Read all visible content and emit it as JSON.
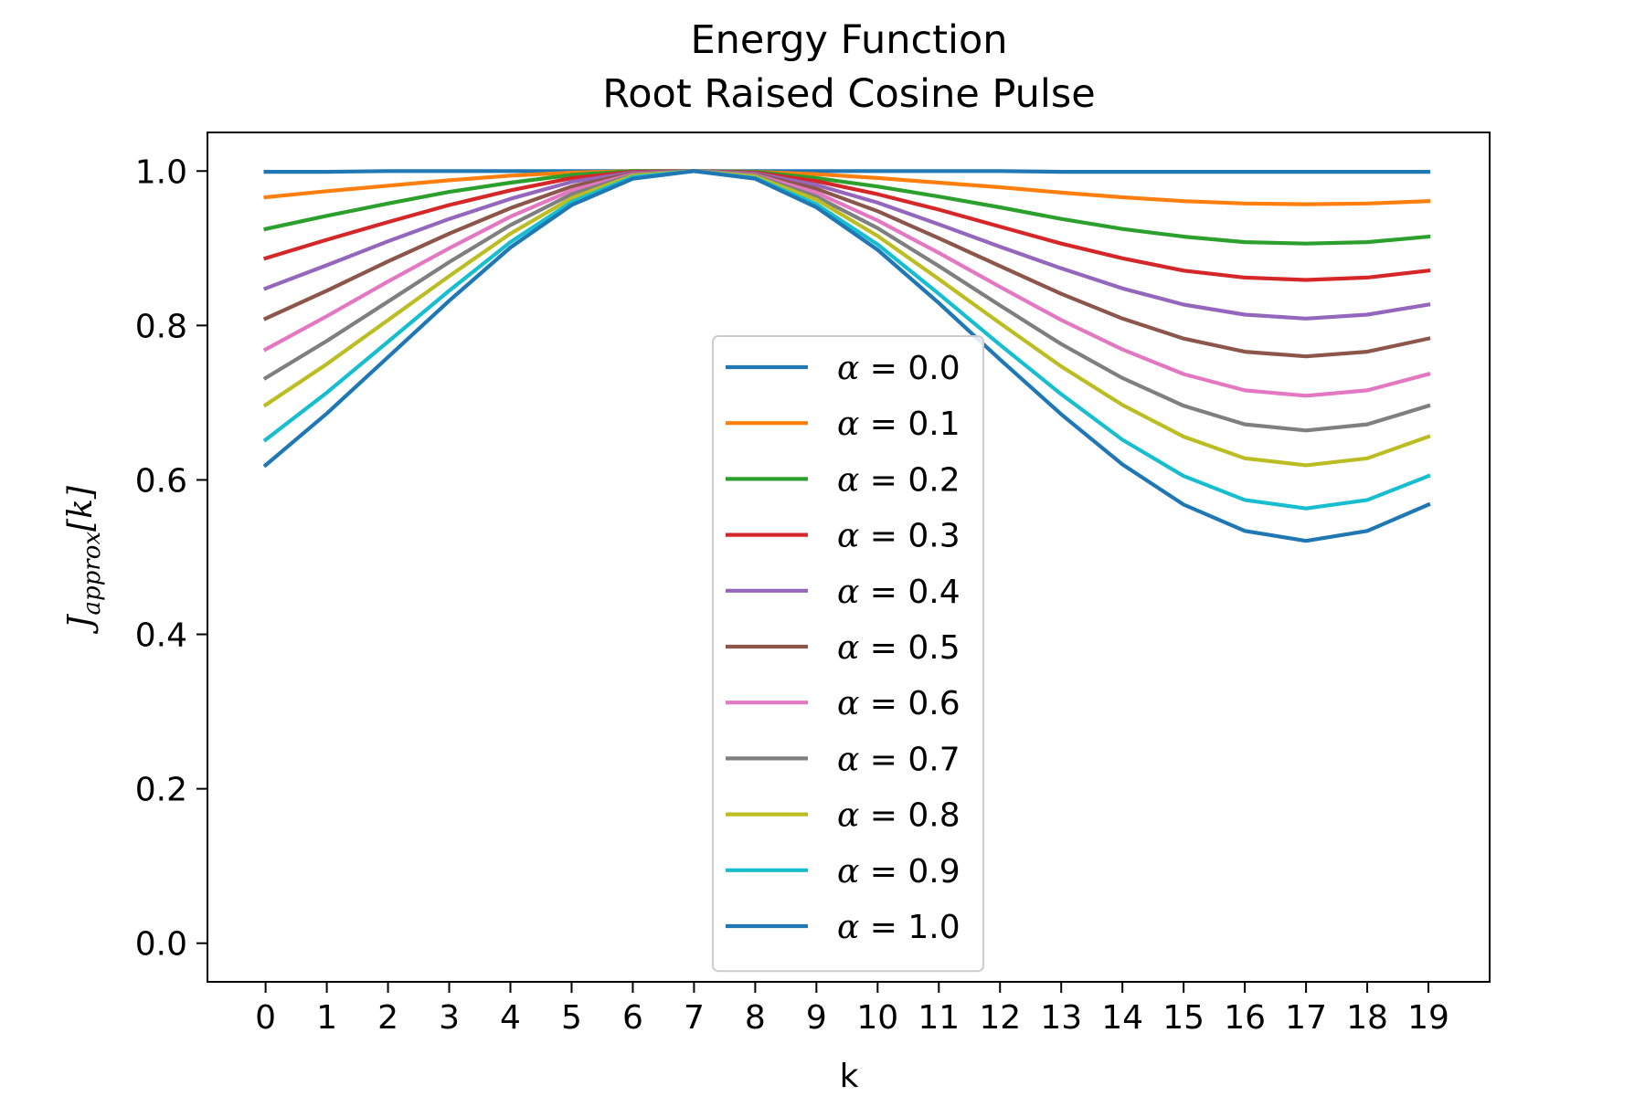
{
  "chart_data": {
    "type": "line",
    "title": [
      "Energy Function",
      "Root Raised Cosine Pulse"
    ],
    "xlabel": "k",
    "ylabel": {
      "base": "J",
      "subscript": "approx",
      "suffix": "[k]"
    },
    "x": [
      0,
      1,
      2,
      3,
      4,
      5,
      6,
      7,
      8,
      9,
      10,
      11,
      12,
      13,
      14,
      15,
      16,
      17,
      18,
      19
    ],
    "xlim": [
      -0.95,
      20.0
    ],
    "ylim": [
      -0.05,
      1.05
    ],
    "yticks": [
      0.0,
      0.2,
      0.4,
      0.6,
      0.8,
      1.0
    ],
    "ytick_labels": [
      "0.0",
      "0.2",
      "0.4",
      "0.6",
      "0.8",
      "1.0"
    ],
    "xtick_labels": [
      "0",
      "1",
      "2",
      "3",
      "4",
      "5",
      "6",
      "7",
      "8",
      "9",
      "10",
      "11",
      "12",
      "13",
      "14",
      "15",
      "16",
      "17",
      "18",
      "19"
    ],
    "grid": false,
    "legend_placement": "lower-center",
    "legend_symbol": "α",
    "series": [
      {
        "name": "0.0",
        "color": "#1f77b4",
        "values": [
          0.999,
          0.999,
          1.0,
          1.0,
          1.0,
          1.0,
          1.0,
          1.0,
          1.0,
          1.0,
          1.0,
          1.0,
          1.0,
          0.999,
          0.999,
          0.999,
          0.999,
          0.999,
          0.999,
          0.999
        ]
      },
      {
        "name": "0.1",
        "color": "#ff7f0e",
        "values": [
          0.966,
          0.974,
          0.981,
          0.988,
          0.994,
          0.998,
          1.0,
          1.0,
          0.999,
          0.996,
          0.991,
          0.985,
          0.979,
          0.972,
          0.966,
          0.961,
          0.958,
          0.957,
          0.958,
          0.961
        ]
      },
      {
        "name": "0.2",
        "color": "#2ca02c",
        "values": [
          0.925,
          0.942,
          0.958,
          0.973,
          0.985,
          0.995,
          1.0,
          1.0,
          0.999,
          0.991,
          0.98,
          0.967,
          0.953,
          0.938,
          0.925,
          0.915,
          0.908,
          0.906,
          0.908,
          0.915
        ]
      },
      {
        "name": "0.3",
        "color": "#d62728",
        "values": [
          0.887,
          0.911,
          0.934,
          0.956,
          0.975,
          0.991,
          0.999,
          1.0,
          0.998,
          0.987,
          0.97,
          0.95,
          0.928,
          0.906,
          0.887,
          0.871,
          0.862,
          0.859,
          0.862,
          0.871
        ]
      },
      {
        "name": "0.4",
        "color": "#9467bd",
        "values": [
          0.848,
          0.878,
          0.909,
          0.938,
          0.964,
          0.986,
          0.998,
          1.0,
          0.997,
          0.982,
          0.959,
          0.931,
          0.902,
          0.874,
          0.848,
          0.827,
          0.814,
          0.809,
          0.814,
          0.827
        ]
      },
      {
        "name": "0.5",
        "color": "#8c564b",
        "values": [
          0.809,
          0.845,
          0.883,
          0.919,
          0.952,
          0.98,
          0.997,
          1.0,
          0.996,
          0.977,
          0.948,
          0.913,
          0.877,
          0.841,
          0.809,
          0.783,
          0.766,
          0.76,
          0.766,
          0.783
        ]
      },
      {
        "name": "0.6",
        "color": "#e377c2",
        "values": [
          0.769,
          0.812,
          0.857,
          0.9,
          0.941,
          0.975,
          0.996,
          1.0,
          0.995,
          0.972,
          0.936,
          0.894,
          0.85,
          0.807,
          0.769,
          0.737,
          0.716,
          0.709,
          0.716,
          0.737
        ]
      },
      {
        "name": "0.7",
        "color": "#7f7f7f",
        "values": [
          0.732,
          0.78,
          0.831,
          0.882,
          0.93,
          0.97,
          0.995,
          1.0,
          0.994,
          0.967,
          0.926,
          0.877,
          0.826,
          0.776,
          0.732,
          0.696,
          0.672,
          0.664,
          0.672,
          0.696
        ]
      },
      {
        "name": "0.8",
        "color": "#bcbd22",
        "values": [
          0.697,
          0.75,
          0.807,
          0.864,
          0.919,
          0.965,
          0.994,
          1.0,
          0.993,
          0.963,
          0.916,
          0.86,
          0.803,
          0.747,
          0.697,
          0.656,
          0.628,
          0.619,
          0.628,
          0.656
        ]
      },
      {
        "name": "0.9",
        "color": "#17becf",
        "values": [
          0.652,
          0.713,
          0.779,
          0.845,
          0.908,
          0.96,
          0.992,
          1.0,
          0.991,
          0.957,
          0.905,
          0.841,
          0.775,
          0.711,
          0.652,
          0.605,
          0.574,
          0.563,
          0.574,
          0.605
        ]
      },
      {
        "name": "1.0",
        "color": "#1f77b4",
        "values": [
          0.619,
          0.686,
          0.759,
          0.832,
          0.901,
          0.956,
          0.99,
          1.0,
          0.99,
          0.953,
          0.898,
          0.829,
          0.756,
          0.685,
          0.62,
          0.568,
          0.534,
          0.521,
          0.534,
          0.568
        ]
      }
    ]
  }
}
